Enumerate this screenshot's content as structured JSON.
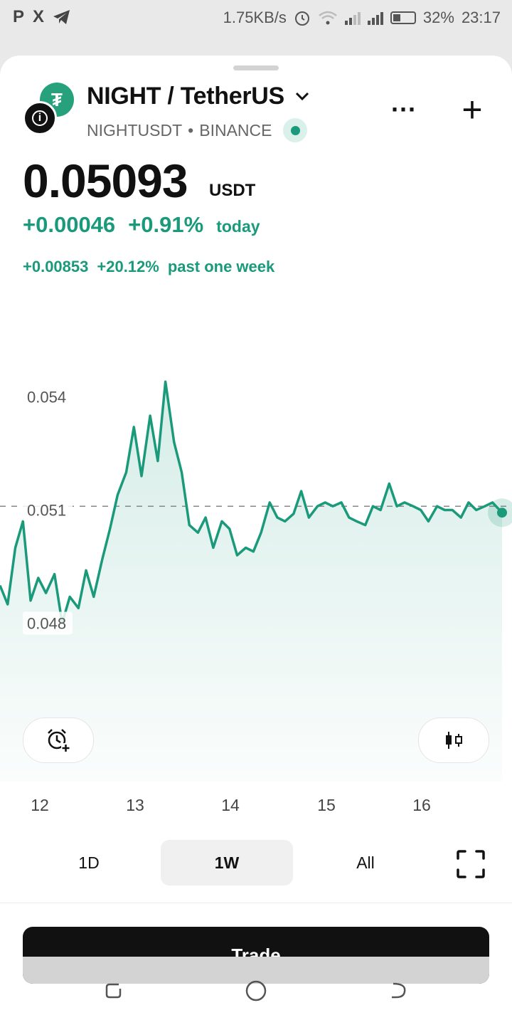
{
  "status_bar": {
    "left_icons": [
      "P",
      "X"
    ],
    "speed": "1.75KB/s",
    "battery": "32%",
    "time": "23:17"
  },
  "pair": {
    "title": "NIGHT / TetherUS",
    "symbol": "NIGHTUSDT",
    "separator": "•",
    "exchange": "BINANCE"
  },
  "price": {
    "value": "0.05093",
    "unit": "USDT",
    "change_abs": "+0.00046",
    "change_pct": "+0.91%",
    "change_label": "today",
    "week_abs": "+0.00853",
    "week_pct": "+20.12%",
    "week_label": "past one week"
  },
  "chart_data": {
    "type": "line",
    "y_ticks": [
      "0.054",
      "0.051",
      "0.048"
    ],
    "x_ticks": [
      "12",
      "13",
      "14",
      "15",
      "16"
    ],
    "ylim": [
      0.0455,
      0.0555
    ],
    "xlim": [
      11.6,
      16.85
    ],
    "reference_line": 0.0511,
    "grid": false,
    "color": "#1a9a7b",
    "series": [
      {
        "x": [
          11.6,
          11.68,
          11.76,
          11.84,
          11.92,
          12.0,
          12.08,
          12.17,
          12.25,
          12.33,
          12.42,
          12.5,
          12.58,
          12.67,
          12.75,
          12.83,
          12.92,
          13.0,
          13.08,
          13.17,
          13.25,
          13.33,
          13.42,
          13.5,
          13.58,
          13.67,
          13.75,
          13.83,
          13.92,
          14.0,
          14.08,
          14.17,
          14.25,
          14.33,
          14.42,
          14.5,
          14.58,
          14.67,
          14.75,
          14.83,
          14.92,
          15.0,
          15.08,
          15.17,
          15.25,
          15.33,
          15.42,
          15.5,
          15.58,
          15.67,
          15.75,
          15.83,
          15.92,
          16.0,
          16.08,
          16.17,
          16.25,
          16.33,
          16.42,
          16.5,
          16.58,
          16.67,
          16.75,
          16.85
        ],
        "y": [
          0.049,
          0.0485,
          0.05,
          0.0507,
          0.0486,
          0.0492,
          0.0488,
          0.0493,
          0.048,
          0.0487,
          0.0484,
          0.0494,
          0.0487,
          0.0497,
          0.0505,
          0.0514,
          0.052,
          0.0532,
          0.0519,
          0.0535,
          0.0523,
          0.0544,
          0.0528,
          0.052,
          0.0506,
          0.0504,
          0.0508,
          0.05,
          0.0507,
          0.0505,
          0.0498,
          0.05,
          0.0499,
          0.0504,
          0.0512,
          0.0508,
          0.0507,
          0.0509,
          0.0515,
          0.0508,
          0.0511,
          0.0512,
          0.0511,
          0.0512,
          0.0508,
          0.0507,
          0.0506,
          0.0511,
          0.051,
          0.0517,
          0.0511,
          0.0512,
          0.0511,
          0.051,
          0.0507,
          0.0511,
          0.051,
          0.051,
          0.0508,
          0.0512,
          0.051,
          0.0511,
          0.0512,
          0.05093
        ]
      }
    ]
  },
  "range_tabs": [
    "1D",
    "1W",
    "All"
  ],
  "active_range": "1W",
  "trade_label": "Trade"
}
